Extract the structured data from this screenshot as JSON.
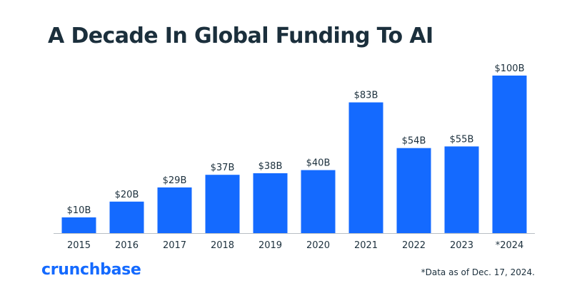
{
  "chart_data": {
    "type": "bar",
    "title": "A Decade In Global Funding To AI",
    "xlabel": "",
    "ylabel": "",
    "categories": [
      "2015",
      "2016",
      "2017",
      "2018",
      "2019",
      "2020",
      "2021",
      "2022",
      "2023",
      "*2024"
    ],
    "values": [
      10,
      20,
      29,
      37,
      38,
      40,
      83,
      54,
      55,
      100
    ],
    "value_labels": [
      "$10B",
      "$20B",
      "$29B",
      "$37B",
      "$38B",
      "$40B",
      "$83B",
      "$54B",
      "$55B",
      "$100B"
    ],
    "unit": "USD billions",
    "ylim": [
      0,
      100
    ],
    "grid": false,
    "legend": "none",
    "bar_color": "#146aff"
  },
  "footer": {
    "brand": "crunchbase",
    "note": "*Data as of Dec. 17, 2024."
  },
  "colors": {
    "title": "#1b2f3c",
    "bar": "#146aff",
    "axis": "#b8bec4",
    "text": "#1b2f3c"
  }
}
